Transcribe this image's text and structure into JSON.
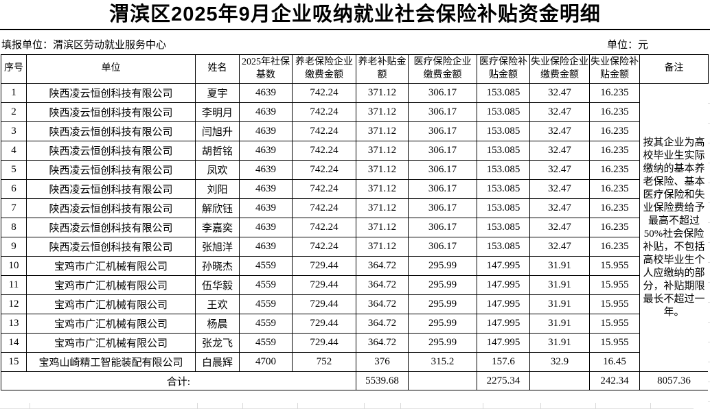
{
  "title": "渭滨区2025年9月企业吸纳就业社会保险补贴资金明细",
  "meta": {
    "reporting_unit": "填报单位：渭滨区劳动就业服务中心",
    "unit_label": "单位：元"
  },
  "table": {
    "headers": [
      "序号",
      "单位",
      "姓名",
      "2025年社保基数",
      "养老保险企业缴费金额",
      "养老补贴金额",
      "医疗保险企业缴费金额",
      "医疗保险补贴金额",
      "失业保险企业缴费金额",
      "失业保险补贴金额",
      "备注"
    ],
    "rows": [
      [
        "1",
        "陕西凌云恒创科技有限公司",
        "夏宇",
        "4639",
        "742.24",
        "371.12",
        "306.17",
        "153.085",
        "32.47",
        "16.235"
      ],
      [
        "2",
        "陕西凌云恒创科技有限公司",
        "李明月",
        "4639",
        "742.24",
        "371.12",
        "306.17",
        "153.085",
        "32.47",
        "16.235"
      ],
      [
        "3",
        "陕西凌云恒创科技有限公司",
        "闫旭升",
        "4639",
        "742.24",
        "371.12",
        "306.17",
        "153.085",
        "32.47",
        "16.235"
      ],
      [
        "4",
        "陕西凌云恒创科技有限公司",
        "胡哲铭",
        "4639",
        "742.24",
        "371.12",
        "306.17",
        "153.085",
        "32.47",
        "16.235"
      ],
      [
        "5",
        "陕西凌云恒创科技有限公司",
        "凤欢",
        "4639",
        "742.24",
        "371.12",
        "306.17",
        "153.085",
        "32.47",
        "16.235"
      ],
      [
        "6",
        "陕西凌云恒创科技有限公司",
        "刘阳",
        "4639",
        "742.24",
        "371.12",
        "306.17",
        "153.085",
        "32.47",
        "16.235"
      ],
      [
        "7",
        "陕西凌云恒创科技有限公司",
        "解欣钰",
        "4639",
        "742.24",
        "371.12",
        "306.17",
        "153.085",
        "32.47",
        "16.235"
      ],
      [
        "8",
        "陕西凌云恒创科技有限公司",
        "李嘉奕",
        "4639",
        "742.24",
        "371.12",
        "306.17",
        "153.085",
        "32.47",
        "16.235"
      ],
      [
        "9",
        "陕西凌云恒创科技有限公司",
        "张旭洋",
        "4639",
        "742.24",
        "371.12",
        "306.17",
        "153.085",
        "32.47",
        "16.235"
      ],
      [
        "10",
        "宝鸡市广汇机械有限公司",
        "孙晓杰",
        "4559",
        "729.44",
        "364.72",
        "295.99",
        "147.995",
        "31.91",
        "15.955"
      ],
      [
        "11",
        "宝鸡市广汇机械有限公司",
        "伍华毅",
        "4559",
        "729.44",
        "364.72",
        "295.99",
        "147.995",
        "31.91",
        "15.955"
      ],
      [
        "12",
        "宝鸡市广汇机械有限公司",
        "王欢",
        "4559",
        "729.44",
        "364.72",
        "295.99",
        "147.995",
        "31.91",
        "15.955"
      ],
      [
        "13",
        "宝鸡市广汇机械有限公司",
        "杨晨",
        "4559",
        "729.44",
        "364.72",
        "295.99",
        "147.995",
        "31.91",
        "15.955"
      ],
      [
        "14",
        "宝鸡市广汇机械有限公司",
        "张龙飞",
        "4559",
        "729.44",
        "364.72",
        "295.99",
        "147.995",
        "31.91",
        "15.955"
      ],
      [
        "15",
        "宝鸡山崎精工智能装配有限公司",
        "白晨辉",
        "4700",
        "752",
        "376",
        "315.2",
        "157.6",
        "32.9",
        "16.45"
      ]
    ],
    "remark": "按其企业为高校毕业生实际缴纳的基本养老保险、基本医疗保险和失业保险费给予最高不超过50%社会保险补贴，不包括高校毕业生个人应缴纳的部分，补贴期限最长不超过一年。",
    "total": {
      "label": "合计:",
      "pension_subsidy_total": "5539.68",
      "medical_contrib_total": "",
      "medical_subsidy_total": "2275.34",
      "unemployment_contrib_total": "",
      "unemployment_subsidy_total": "242.34",
      "grand_total": "8057.36"
    }
  }
}
